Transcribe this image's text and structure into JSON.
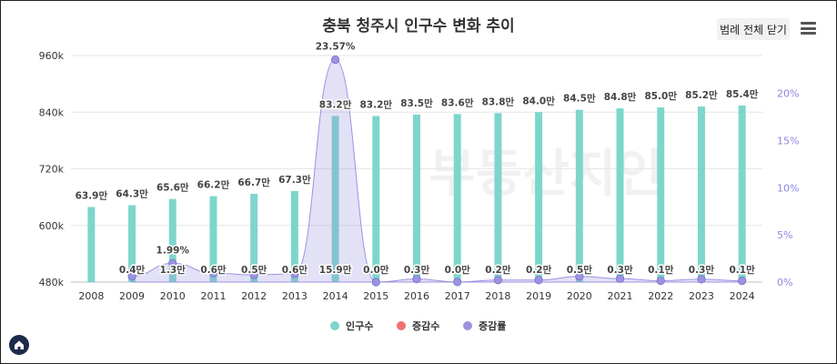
{
  "chart_title": "충북 청주시 인구수 변화 추이",
  "legend_toggle_label": "범례 전체 닫기",
  "watermark": "부동산지인",
  "chart_data": {
    "type": "bar",
    "title": "충북 청주시 인구수 변화 추이",
    "categories": [
      "2008",
      "2009",
      "2010",
      "2011",
      "2012",
      "2013",
      "2014",
      "2015",
      "2016",
      "2017",
      "2018",
      "2019",
      "2020",
      "2021",
      "2022",
      "2023",
      "2024"
    ],
    "series": [
      {
        "name": "인구수",
        "type": "bar",
        "color": "#7dd6cc",
        "values": [
          639000,
          643000,
          656000,
          662000,
          667000,
          673000,
          832000,
          832000,
          835000,
          836000,
          838000,
          840000,
          845000,
          848000,
          850000,
          852000,
          854000
        ],
        "labels": [
          "63.9만",
          "64.3만",
          "65.6만",
          "66.2만",
          "66.7만",
          "67.3만",
          "83.2만",
          "83.2만",
          "83.5만",
          "83.6만",
          "83.8만",
          "84.0만",
          "84.5만",
          "84.8만",
          "85.0만",
          "85.2만",
          "85.4만"
        ]
      },
      {
        "name": "증감수",
        "type": "label",
        "color": "#f07070",
        "labels": [
          "",
          "0.4만",
          "1.3만",
          "0.6만",
          "0.5만",
          "0.6만",
          "15.9만",
          "0.0만",
          "0.3만",
          "0.0만",
          "0.2만",
          "0.2만",
          "0.5만",
          "0.3만",
          "0.1만",
          "0.3만",
          "0.1만"
        ]
      },
      {
        "name": "증감률",
        "type": "area",
        "color": "#9b93e0",
        "values": [
          null,
          0.63,
          1.99,
          0.95,
          0.77,
          0.88,
          23.57,
          0.0,
          0.32,
          0.01,
          0.22,
          0.22,
          0.6,
          0.36,
          0.15,
          0.3,
          0.13
        ],
        "labels": [
          "",
          "",
          "1.99%",
          "",
          "",
          "",
          "23.57%",
          "",
          "",
          "",
          "",
          "",
          "",
          "",
          "",
          "",
          ""
        ]
      }
    ],
    "y_left": {
      "min": 480000,
      "max": 960000,
      "ticks": [
        "480k",
        "600k",
        "720k",
        "840k",
        "960k"
      ],
      "tick_values": [
        480000,
        600000,
        720000,
        840000,
        960000
      ]
    },
    "y_right": {
      "min": 0,
      "max": 24,
      "ticks": [
        "0%",
        "5%",
        "10%",
        "15%",
        "20%"
      ],
      "tick_values": [
        0,
        5,
        10,
        15,
        20
      ]
    },
    "legend": [
      "인구수",
      "증감수",
      "증감률"
    ],
    "legend_position": "bottom"
  }
}
